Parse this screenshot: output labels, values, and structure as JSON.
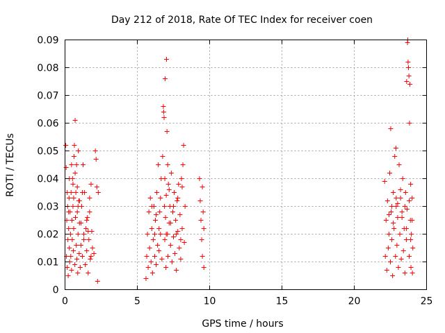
{
  "chart_data": {
    "type": "scatter",
    "title": "Day 212 of 2018, Rate Of TEC Index for receiver coen",
    "xlabel": "GPS time / hours",
    "ylabel": "ROTI / TECUs",
    "xlim": [
      0,
      25
    ],
    "ylim": [
      0,
      0.09
    ],
    "xticks": [
      "0",
      "5",
      "10",
      "15",
      "20",
      "25"
    ],
    "yticks": [
      "0",
      "0.01",
      "0.02",
      "0.03",
      "0.04",
      "0.05",
      "0.06",
      "0.07",
      "0.08",
      "0.09"
    ],
    "grid": true,
    "marker": "plus",
    "color": "#ff0000",
    "series": [
      {
        "points": [
          [
            0.05,
            0.052
          ],
          [
            0.08,
            0.044
          ],
          [
            0.1,
            0.012
          ],
          [
            0.12,
            0.025
          ],
          [
            0.15,
            0.008
          ],
          [
            0.18,
            0.03
          ],
          [
            0.2,
            0.018
          ],
          [
            0.22,
            0.005
          ],
          [
            0.25,
            0.022
          ],
          [
            0.28,
            0.033
          ],
          [
            0.3,
            0.015
          ],
          [
            0.32,
            0.01
          ],
          [
            0.35,
            0.028
          ],
          [
            0.38,
            0.02
          ],
          [
            0.4,
            0.012
          ],
          [
            0.42,
            0.035
          ],
          [
            0.45,
            0.007
          ],
          [
            0.48,
            0.025
          ],
          [
            0.5,
            0.018
          ],
          [
            0.52,
            0.04
          ],
          [
            0.55,
            0.03
          ],
          [
            0.58,
            0.014
          ],
          [
            0.6,
            0.022
          ],
          [
            0.62,
            0.048
          ],
          [
            0.65,
            0.052
          ],
          [
            0.68,
            0.009
          ],
          [
            0.7,
            0.061
          ],
          [
            0.72,
            0.026
          ],
          [
            0.75,
            0.035
          ],
          [
            0.78,
            0.016
          ],
          [
            0.8,
            0.045
          ],
          [
            0.82,
            0.011
          ],
          [
            0.85,
            0.028
          ],
          [
            0.88,
            0.006
          ],
          [
            0.9,
            0.02
          ],
          [
            0.92,
            0.05
          ],
          [
            0.95,
            0.032
          ],
          [
            0.98,
            0.013
          ],
          [
            1.0,
            0.024
          ],
          [
            1.05,
            0.008
          ],
          [
            1.1,
            0.016
          ],
          [
            1.15,
            0.03
          ],
          [
            1.2,
            0.012
          ],
          [
            1.25,
            0.045
          ],
          [
            1.3,
            0.02
          ],
          [
            1.35,
            0.035
          ],
          [
            1.4,
            0.009
          ],
          [
            1.45,
            0.022
          ],
          [
            1.5,
            0.014
          ],
          [
            1.55,
            0.026
          ],
          [
            1.6,
            0.006
          ],
          [
            1.65,
            0.018
          ],
          [
            1.7,
            0.033
          ],
          [
            1.75,
            0.011
          ],
          [
            1.8,
            0.038
          ],
          [
            1.85,
            0.021
          ],
          [
            1.9,
            0.015
          ],
          [
            2.0,
            0.013
          ],
          [
            2.1,
            0.05
          ],
          [
            2.15,
            0.047
          ],
          [
            2.2,
            0.037
          ],
          [
            2.25,
            0.003
          ],
          [
            2.3,
            0.035
          ],
          [
            0.3,
            0.04
          ],
          [
            0.45,
            0.045
          ],
          [
            0.55,
            0.038
          ],
          [
            0.7,
            0.042
          ],
          [
            0.85,
            0.037
          ],
          [
            1.0,
            0.032
          ],
          [
            1.2,
            0.035
          ],
          [
            1.5,
            0.025
          ],
          [
            1.7,
            0.028
          ],
          [
            0.15,
            0.035
          ],
          [
            0.25,
            0.028
          ],
          [
            0.6,
            0.033
          ],
          [
            0.9,
            0.03
          ],
          [
            1.1,
            0.024
          ],
          [
            1.3,
            0.018
          ],
          [
            1.6,
            0.021
          ],
          [
            1.8,
            0.012
          ],
          [
            5.6,
            0.004
          ],
          [
            5.65,
            0.012
          ],
          [
            5.7,
            0.02
          ],
          [
            5.75,
            0.008
          ],
          [
            5.8,
            0.028
          ],
          [
            5.85,
            0.015
          ],
          [
            5.9,
            0.033
          ],
          [
            5.95,
            0.01
          ],
          [
            6.0,
            0.022
          ],
          [
            6.05,
            0.006
          ],
          [
            6.1,
            0.018
          ],
          [
            6.15,
            0.03
          ],
          [
            6.2,
            0.012
          ],
          [
            6.25,
            0.025
          ],
          [
            6.3,
            0.009
          ],
          [
            6.35,
            0.035
          ],
          [
            6.4,
            0.016
          ],
          [
            6.45,
            0.045
          ],
          [
            6.5,
            0.014
          ],
          [
            6.55,
            0.028
          ],
          [
            6.6,
            0.02
          ],
          [
            6.65,
            0.04
          ],
          [
            6.7,
            0.011
          ],
          [
            6.75,
            0.048
          ],
          [
            6.8,
            0.066
          ],
          [
            6.82,
            0.064
          ],
          [
            6.85,
            0.062
          ],
          [
            6.88,
            0.03
          ],
          [
            6.9,
            0.018
          ],
          [
            6.92,
            0.076
          ],
          [
            6.95,
            0.026
          ],
          [
            6.98,
            0.008
          ],
          [
            7.0,
            0.034
          ],
          [
            7.02,
            0.083
          ],
          [
            7.05,
            0.057
          ],
          [
            7.08,
            0.02
          ],
          [
            7.1,
            0.045
          ],
          [
            7.12,
            0.012
          ],
          [
            7.15,
            0.038
          ],
          [
            7.2,
            0.024
          ],
          [
            7.25,
            0.03
          ],
          [
            7.3,
            0.016
          ],
          [
            7.35,
            0.042
          ],
          [
            7.4,
            0.01
          ],
          [
            7.45,
            0.028
          ],
          [
            7.5,
            0.019
          ],
          [
            7.55,
            0.035
          ],
          [
            7.6,
            0.013
          ],
          [
            7.65,
            0.025
          ],
          [
            7.7,
            0.007
          ],
          [
            7.75,
            0.032
          ],
          [
            7.8,
            0.021
          ],
          [
            7.85,
            0.038
          ],
          [
            7.9,
            0.015
          ],
          [
            7.95,
            0.027
          ],
          [
            8.0,
            0.011
          ],
          [
            8.05,
            0.04
          ],
          [
            8.1,
            0.022
          ],
          [
            8.15,
            0.045
          ],
          [
            8.2,
            0.052
          ],
          [
            8.25,
            0.017
          ],
          [
            8.3,
            0.03
          ],
          [
            9.3,
            0.04
          ],
          [
            9.35,
            0.032
          ],
          [
            9.4,
            0.025
          ],
          [
            9.45,
            0.018
          ],
          [
            9.5,
            0.012
          ],
          [
            9.55,
            0.028
          ],
          [
            9.6,
            0.008
          ],
          [
            9.5,
            0.037
          ],
          [
            9.6,
            0.022
          ],
          [
            6.0,
            0.03
          ],
          [
            6.3,
            0.027
          ],
          [
            6.6,
            0.033
          ],
          [
            6.9,
            0.04
          ],
          [
            7.2,
            0.036
          ],
          [
            7.5,
            0.03
          ],
          [
            7.8,
            0.033
          ],
          [
            8.1,
            0.037
          ],
          [
            6.2,
            0.02
          ],
          [
            6.5,
            0.022
          ],
          [
            7.0,
            0.02
          ],
          [
            7.3,
            0.024
          ],
          [
            7.7,
            0.02
          ],
          [
            8.0,
            0.018
          ],
          [
            22.1,
            0.039
          ],
          [
            22.15,
            0.012
          ],
          [
            22.2,
            0.025
          ],
          [
            22.25,
            0.007
          ],
          [
            22.3,
            0.032
          ],
          [
            22.35,
            0.015
          ],
          [
            22.4,
            0.02
          ],
          [
            22.45,
            0.042
          ],
          [
            22.5,
            0.01
          ],
          [
            22.52,
            0.058
          ],
          [
            22.55,
            0.028
          ],
          [
            22.6,
            0.018
          ],
          [
            22.65,
            0.005
          ],
          [
            22.7,
            0.035
          ],
          [
            22.75,
            0.022
          ],
          [
            22.8,
            0.048
          ],
          [
            22.85,
            0.012
          ],
          [
            22.88,
            0.051
          ],
          [
            22.9,
            0.03
          ],
          [
            22.95,
            0.016
          ],
          [
            23.0,
            0.026
          ],
          [
            23.05,
            0.008
          ],
          [
            23.1,
            0.045
          ],
          [
            23.15,
            0.02
          ],
          [
            23.2,
            0.033
          ],
          [
            23.25,
            0.011
          ],
          [
            23.3,
            0.028
          ],
          [
            23.35,
            0.04
          ],
          [
            23.4,
            0.014
          ],
          [
            23.45,
            0.022
          ],
          [
            23.5,
            0.006
          ],
          [
            23.55,
            0.035
          ],
          [
            23.6,
            0.018
          ],
          [
            23.62,
            0.075
          ],
          [
            23.65,
            0.029
          ],
          [
            23.68,
            0.089
          ],
          [
            23.7,
            0.09
          ],
          [
            23.72,
            0.082
          ],
          [
            23.75,
            0.08
          ],
          [
            23.78,
            0.077
          ],
          [
            23.8,
            0.012
          ],
          [
            23.82,
            0.06
          ],
          [
            23.85,
            0.074
          ],
          [
            23.88,
            0.025
          ],
          [
            23.9,
            0.038
          ],
          [
            23.92,
            0.008
          ],
          [
            23.95,
            0.02
          ],
          [
            24.0,
            0.033
          ],
          [
            24.02,
            0.006
          ],
          [
            24.05,
            0.015
          ],
          [
            22.6,
            0.03
          ],
          [
            22.9,
            0.033
          ],
          [
            23.2,
            0.036
          ],
          [
            23.5,
            0.03
          ],
          [
            23.8,
            0.032
          ],
          [
            24.0,
            0.025
          ],
          [
            22.4,
            0.027
          ],
          [
            22.7,
            0.024
          ],
          [
            23.0,
            0.031
          ],
          [
            23.3,
            0.026
          ],
          [
            23.6,
            0.022
          ],
          [
            23.9,
            0.018
          ]
        ]
      }
    ]
  }
}
